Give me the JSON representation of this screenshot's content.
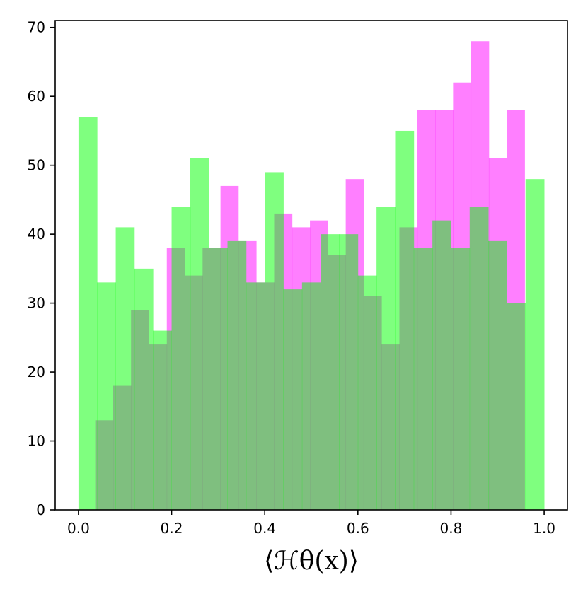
{
  "chart_data": {
    "type": "bar",
    "subtype": "overlapping-histogram",
    "xlabel": "⟨ℋθ(x)⟩",
    "xlim": [
      -0.05,
      1.05
    ],
    "ylim": [
      0,
      71
    ],
    "xticks": [
      "0.0",
      "0.2",
      "0.4",
      "0.6",
      "0.8",
      "1.0"
    ],
    "yticks": [
      "0",
      "10",
      "20",
      "30",
      "40",
      "50",
      "60",
      "70"
    ],
    "series": [
      {
        "color": "#ff00ff",
        "alpha": 0.5,
        "bin_start": 0.036,
        "bin_width": 0.03842,
        "values": [
          13,
          18,
          29,
          24,
          38,
          34,
          38,
          47,
          39,
          33,
          43,
          41,
          42,
          37,
          48,
          31,
          24,
          41,
          58,
          58,
          62,
          68,
          51,
          58
        ]
      },
      {
        "color": "#00ff00",
        "alpha": 0.5,
        "bin_start": 0.0,
        "bin_width": 0.04,
        "values": [
          57,
          33,
          41,
          35,
          26,
          44,
          51,
          38,
          39,
          33,
          49,
          32,
          33,
          40,
          40,
          34,
          44,
          55,
          38,
          42,
          38,
          44,
          39,
          30,
          48
        ]
      }
    ]
  }
}
